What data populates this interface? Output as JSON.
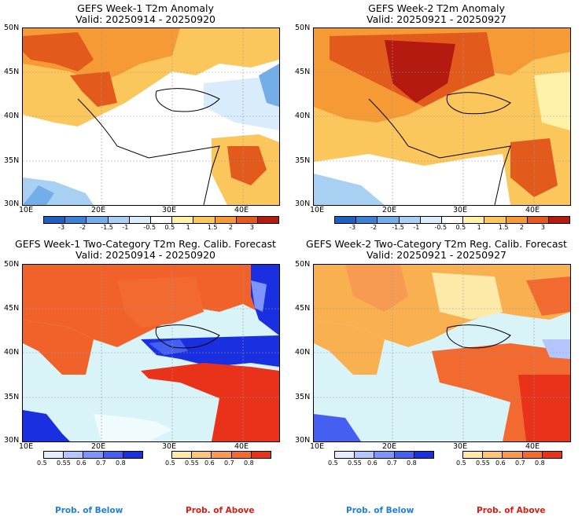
{
  "panels": [
    {
      "title": "GEFS Week-1 T2m Anomaly",
      "valid": "Valid: 20250914 - 20250920"
    },
    {
      "title": "GEFS Week-2 T2m Anomaly",
      "valid": "Valid: 20250921 - 20250927"
    },
    {
      "title": "GEFS Week-1 Two-Category T2m Reg. Calib. Forecast",
      "valid": "Valid: 20250914 - 20250920"
    },
    {
      "title": "GEFS Week-2 Two-Category T2m Reg. Calib. Forecast",
      "valid": "Valid: 20250921 - 20250927"
    }
  ],
  "axes": {
    "lat_labels": [
      "50N",
      "45N",
      "40N",
      "35N",
      "30N"
    ],
    "lon_labels": [
      "10E",
      "20E",
      "30E",
      "40E"
    ]
  },
  "anomaly_colorbar": {
    "labels": [
      "-3",
      "-2",
      "-1.5",
      "-1",
      "-0.5",
      "0.5",
      "1",
      "1.5",
      "2",
      "3"
    ],
    "colors": [
      "#1f5fbf",
      "#3b82d6",
      "#74aee8",
      "#a8d0f2",
      "#d9ecfb",
      "#ffffff",
      "#fff2a8",
      "#fbc65c",
      "#f59a35",
      "#e25a1c",
      "#b51a10"
    ]
  },
  "prob_colorbars": {
    "below_labels": [
      "0.5",
      "0.55",
      "0.6",
      "0.7",
      "0.8"
    ],
    "above_labels": [
      "0.5",
      "0.55",
      "0.6",
      "0.7",
      "0.8"
    ],
    "below_colors": [
      "#e4ecff",
      "#b5c6ff",
      "#7e95ff",
      "#4560f0",
      "#1a2fe0"
    ],
    "above_colors": [
      "#fde9a8",
      "#fbc57a",
      "#f79a52",
      "#f26a30",
      "#e8321a"
    ],
    "below_title": "Prob. of Below",
    "above_title": "Prob. of Above",
    "below_title_color": "#1e7fe0",
    "above_title_color": "#e01a10"
  },
  "map_colors": {
    "sea_light": "#d8f4f8",
    "land_warm": "#f0622a",
    "land_warmer": "#c8281a",
    "land_mild": "#f9b050"
  }
}
